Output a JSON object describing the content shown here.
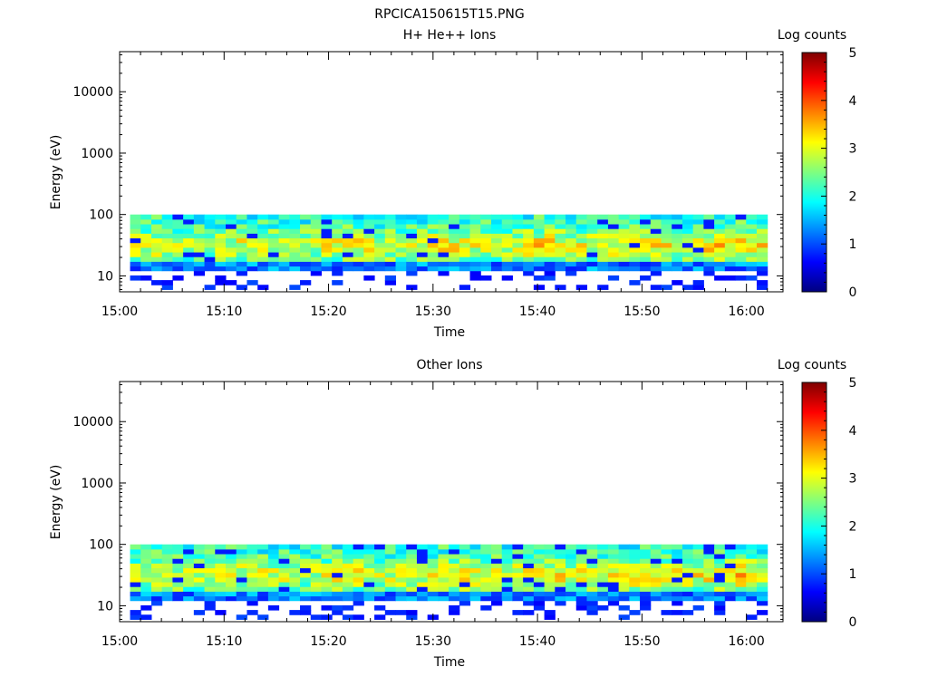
{
  "figure_title": "RPCICA150615T15.PNG",
  "chart_data": [
    {
      "type": "heatmap",
      "title": "H+ He++ Ions",
      "xlabel": "Time",
      "ylabel": "Energy (eV)",
      "x_ticks": [
        "15:00",
        "15:10",
        "15:20",
        "15:30",
        "15:40",
        "15:50",
        "16:00"
      ],
      "x_tick_minutes": [
        0,
        10,
        20,
        30,
        40,
        50,
        60
      ],
      "xlim_minutes": [
        0,
        63.5
      ],
      "data_x_range_minutes": [
        1,
        62
      ],
      "y_scale": "log",
      "y_ticks": [
        "10",
        "100",
        "1000",
        "10000"
      ],
      "y_tick_values": [
        10,
        100,
        1000,
        10000
      ],
      "ylim": [
        5.5,
        45000
      ],
      "data_energy_range": [
        6,
        100
      ],
      "colorbar": {
        "label": "Log counts",
        "ticks": [
          "0",
          "1",
          "2",
          "3",
          "4",
          "5"
        ],
        "range": [
          0,
          5
        ]
      }
    },
    {
      "type": "heatmap",
      "title": "Other Ions",
      "xlabel": "Time",
      "ylabel": "Energy (eV)",
      "x_ticks": [
        "15:00",
        "15:10",
        "15:20",
        "15:30",
        "15:40",
        "15:50",
        "16:00"
      ],
      "x_tick_minutes": [
        0,
        10,
        20,
        30,
        40,
        50,
        60
      ],
      "xlim_minutes": [
        0,
        63.5
      ],
      "data_x_range_minutes": [
        1,
        62
      ],
      "y_scale": "log",
      "y_ticks": [
        "10",
        "100",
        "1000",
        "10000"
      ],
      "y_tick_values": [
        10,
        100,
        1000,
        10000
      ],
      "ylim": [
        5.5,
        45000
      ],
      "data_energy_range": [
        6,
        100
      ],
      "colorbar": {
        "label": "Log counts",
        "ticks": [
          "0",
          "1",
          "2",
          "3",
          "4",
          "5"
        ],
        "range": [
          0,
          5
        ]
      }
    }
  ]
}
